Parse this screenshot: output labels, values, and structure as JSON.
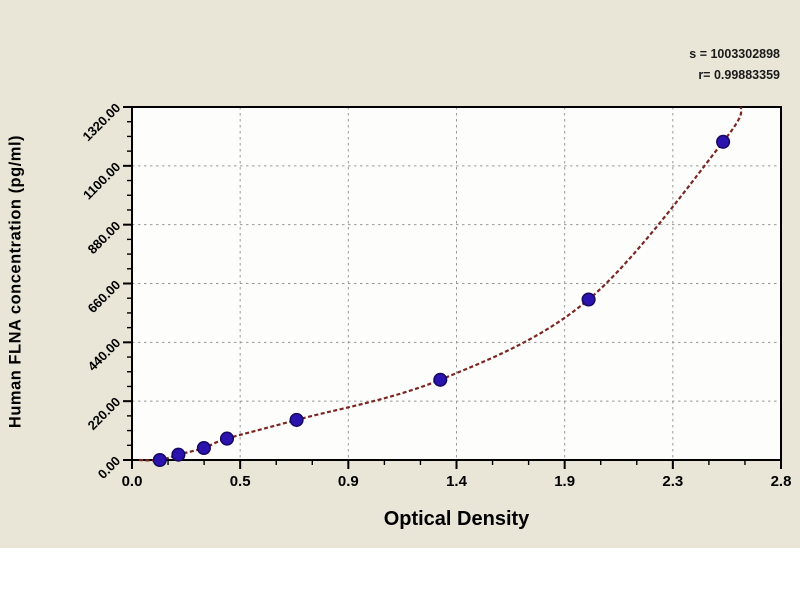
{
  "chart_data": {
    "type": "scatter",
    "subtype": "elisa-standard-curve",
    "title": "",
    "xlabel": "Optical Density",
    "ylabel": "Human FLNA concentration (pg/ml)",
    "xlim": [
      0,
      2.8
    ],
    "ylim": [
      0,
      1320
    ],
    "x_tick_labels": [
      "0.0",
      "0.5",
      "0.9",
      "1.4",
      "1.9",
      "2.3",
      "2.8"
    ],
    "x_minor_divisions": 3,
    "y_tick_labels": [
      "0.00",
      "220.00",
      "440.00",
      "660.00",
      "880.00",
      "1100.00",
      "1320.00"
    ],
    "y_minor_divisions": 4,
    "grid": "dashed",
    "legend_position": "none",
    "annotations": [
      {
        "text": "s = 1003302898"
      },
      {
        "text": "r= 0.99883359"
      }
    ],
    "series": [
      {
        "name": "standard points",
        "marker": "circle",
        "points": [
          {
            "od": 0.12,
            "conc": 0
          },
          {
            "od": 0.2,
            "conc": 20
          },
          {
            "od": 0.31,
            "conc": 45
          },
          {
            "od": 0.41,
            "conc": 80
          },
          {
            "od": 0.71,
            "conc": 150
          },
          {
            "od": 1.33,
            "conc": 300
          },
          {
            "od": 1.97,
            "conc": 600
          },
          {
            "od": 2.55,
            "conc": 1190
          }
        ]
      }
    ],
    "fit_curve": {
      "style": "dashed",
      "start": {
        "od": 0.03,
        "conc": 0
      },
      "end": {
        "od": 2.63,
        "conc": 1320
      }
    },
    "colors": {
      "background": "#e9e6d7",
      "plot_background": "#fdfdfb",
      "frame": "#000000",
      "gridline": "#999999",
      "curve": "#7a2724",
      "point_fill": "#2b13ad",
      "point_stroke": "#150863",
      "text": "#000000"
    }
  }
}
